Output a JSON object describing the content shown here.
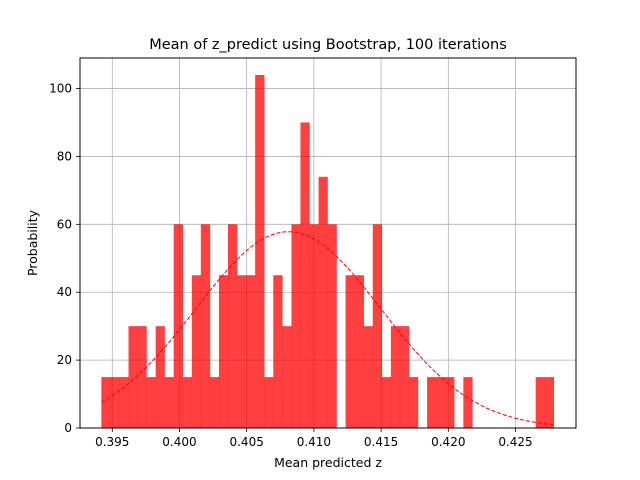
{
  "chart_data": {
    "type": "bar",
    "subtype": "histogram",
    "title": "Mean of z_predict using Bootstrap, 100 iterations",
    "xlabel": "Mean predicted z",
    "ylabel": "Probability",
    "xlim": [
      0.3926,
      0.4295
    ],
    "ylim": [
      0,
      109
    ],
    "x_ticks": [
      "0.395",
      "0.400",
      "0.405",
      "0.410",
      "0.415",
      "0.420",
      "0.425"
    ],
    "x_tick_values": [
      0.395,
      0.4,
      0.405,
      0.41,
      0.415,
      0.42,
      0.425
    ],
    "y_ticks": [
      "0",
      "20",
      "40",
      "60",
      "80",
      "100"
    ],
    "y_tick_values": [
      0,
      20,
      40,
      60,
      80,
      100
    ],
    "grid": true,
    "bar_color": "#ff0000",
    "bar_alpha": 0.75,
    "bin_edges": [
      0.39419,
      0.39486,
      0.39554,
      0.39621,
      0.39688,
      0.39755,
      0.39823,
      0.3989,
      0.39957,
      0.40025,
      0.40092,
      0.40159,
      0.40227,
      0.40294,
      0.40361,
      0.40429,
      0.40496,
      0.40563,
      0.40631,
      0.40698,
      0.40765,
      0.40833,
      0.409,
      0.40967,
      0.41035,
      0.41102,
      0.41169,
      0.41236,
      0.41304,
      0.41371,
      0.41438,
      0.41506,
      0.41573,
      0.4164,
      0.41708,
      0.41775,
      0.41842,
      0.4191,
      0.41977,
      0.42044,
      0.42112,
      0.42179,
      0.42246,
      0.42314,
      0.42381,
      0.42448,
      0.42515,
      0.42583,
      0.4265,
      0.42717,
      0.42785
    ],
    "values": [
      15,
      15,
      15,
      30,
      30,
      15,
      30,
      15,
      60,
      15,
      45,
      60,
      15,
      45,
      60,
      45,
      45,
      104,
      15,
      45,
      30,
      60,
      90,
      60,
      74,
      60,
      0,
      45,
      45,
      30,
      60,
      15,
      30,
      30,
      15,
      0,
      15,
      15,
      15,
      0,
      15,
      0,
      0,
      0,
      0,
      0,
      0,
      0,
      15,
      15
    ],
    "fit_curve": {
      "style": "dashed",
      "color": "#ff0000",
      "mean": 0.4081,
      "std": 0.0069
    }
  }
}
